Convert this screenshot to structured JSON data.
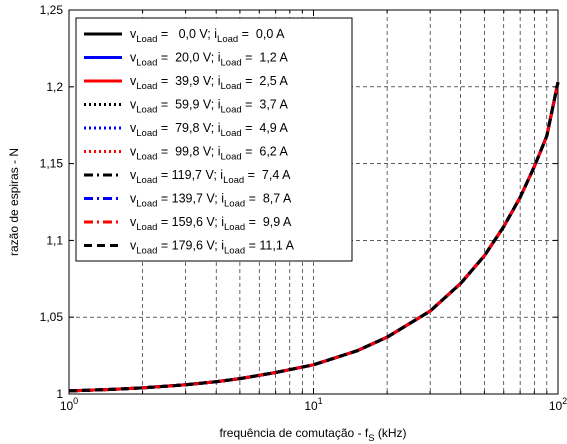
{
  "chart_data": {
    "type": "line",
    "xlabel": "frequência de comutação - f",
    "xlabel_sub": "S",
    "xlabel_suffix": " (kHz)",
    "ylabel": "razão de espiras - N",
    "x_scale": "log",
    "xlim": [
      1,
      100
    ],
    "ylim": [
      1,
      1.25
    ],
    "grid": true,
    "legend_position": "top-left",
    "x_ticks": [
      {
        "value": 1,
        "base": "10",
        "exp": "0"
      },
      {
        "value": 10,
        "base": "10",
        "exp": "1"
      },
      {
        "value": 100,
        "base": "10",
        "exp": "2"
      }
    ],
    "y_ticks": [
      {
        "value": 1,
        "label": "1"
      },
      {
        "value": 1.05,
        "label": "1,05"
      },
      {
        "value": 1.1,
        "label": "1,1"
      },
      {
        "value": 1.15,
        "label": "1,15"
      },
      {
        "value": 1.2,
        "label": "1,2"
      },
      {
        "value": 1.25,
        "label": "1,25"
      }
    ],
    "x": [
      1,
      1.5,
      2,
      3,
      4,
      5,
      7,
      10,
      15,
      20,
      30,
      40,
      50,
      60,
      70,
      80,
      90,
      100
    ],
    "series": [
      {
        "v": "0,0",
        "i": "0,0",
        "color": "#000000",
        "dash": "solid",
        "values": [
          1.002,
          1.003,
          1.004,
          1.006,
          1.008,
          1.01,
          1.014,
          1.019,
          1.028,
          1.037,
          1.054,
          1.072,
          1.09,
          1.109,
          1.128,
          1.148,
          1.168,
          1.203
        ]
      },
      {
        "v": "20,0",
        "i": "1,2",
        "color": "#0000ff",
        "dash": "solid",
        "values": [
          1.002,
          1.003,
          1.004,
          1.006,
          1.008,
          1.01,
          1.014,
          1.019,
          1.028,
          1.037,
          1.054,
          1.072,
          1.09,
          1.109,
          1.128,
          1.148,
          1.168,
          1.203
        ]
      },
      {
        "v": "39,9",
        "i": "2,5",
        "color": "#ff0000",
        "dash": "solid",
        "values": [
          1.002,
          1.003,
          1.004,
          1.006,
          1.008,
          1.01,
          1.014,
          1.019,
          1.028,
          1.037,
          1.054,
          1.072,
          1.09,
          1.109,
          1.128,
          1.148,
          1.168,
          1.203
        ]
      },
      {
        "v": "59,9",
        "i": "3,7",
        "color": "#000000",
        "dash": "dot",
        "values": [
          1.002,
          1.003,
          1.004,
          1.006,
          1.008,
          1.01,
          1.014,
          1.019,
          1.028,
          1.037,
          1.054,
          1.072,
          1.09,
          1.109,
          1.128,
          1.148,
          1.168,
          1.203
        ]
      },
      {
        "v": "79,8",
        "i": "4,9",
        "color": "#0000ff",
        "dash": "dot",
        "values": [
          1.002,
          1.003,
          1.004,
          1.006,
          1.008,
          1.01,
          1.014,
          1.019,
          1.028,
          1.037,
          1.054,
          1.072,
          1.09,
          1.109,
          1.128,
          1.148,
          1.168,
          1.203
        ]
      },
      {
        "v": "99,8",
        "i": "6,2",
        "color": "#ff0000",
        "dash": "dot",
        "values": [
          1.002,
          1.003,
          1.004,
          1.006,
          1.008,
          1.01,
          1.014,
          1.019,
          1.028,
          1.037,
          1.054,
          1.072,
          1.09,
          1.109,
          1.128,
          1.148,
          1.168,
          1.203
        ]
      },
      {
        "v": "119,7",
        "i": "7,4",
        "color": "#000000",
        "dash": "dashdot",
        "values": [
          1.002,
          1.003,
          1.004,
          1.006,
          1.008,
          1.01,
          1.014,
          1.019,
          1.028,
          1.037,
          1.054,
          1.072,
          1.09,
          1.109,
          1.128,
          1.148,
          1.168,
          1.203
        ]
      },
      {
        "v": "139,7",
        "i": "8,7",
        "color": "#0000ff",
        "dash": "dashdot",
        "values": [
          1.002,
          1.003,
          1.004,
          1.006,
          1.008,
          1.01,
          1.014,
          1.019,
          1.028,
          1.037,
          1.054,
          1.072,
          1.09,
          1.109,
          1.128,
          1.148,
          1.168,
          1.203
        ]
      },
      {
        "v": "159,6",
        "i": "9,9",
        "color": "#ff0000",
        "dash": "dashdot",
        "values": [
          1.002,
          1.003,
          1.004,
          1.006,
          1.008,
          1.01,
          1.014,
          1.019,
          1.028,
          1.037,
          1.054,
          1.072,
          1.09,
          1.109,
          1.128,
          1.148,
          1.168,
          1.203
        ]
      },
      {
        "v": "179,6",
        "i": "11,1",
        "color": "#000000",
        "dash": "dash",
        "values": [
          1.002,
          1.003,
          1.004,
          1.006,
          1.008,
          1.01,
          1.014,
          1.019,
          1.028,
          1.037,
          1.054,
          1.072,
          1.09,
          1.109,
          1.128,
          1.148,
          1.168,
          1.203
        ]
      }
    ],
    "legend_template": {
      "v_symbol": "v",
      "i_symbol": "i",
      "subscript": "Load",
      "eq": " = ",
      "v_unit": " V; ",
      "i_unit": " A"
    }
  }
}
